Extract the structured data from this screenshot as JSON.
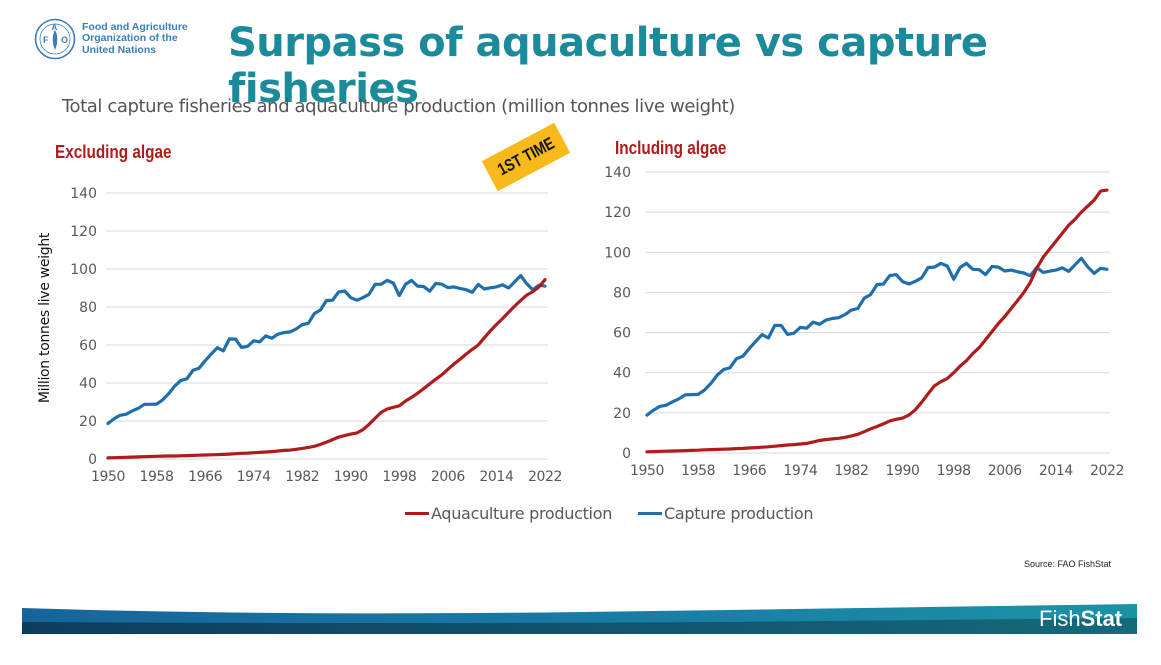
{
  "header": {
    "org_name_lines": [
      "Food and Agriculture",
      "Organization of the",
      "United Nations"
    ],
    "logo_letters": [
      "F",
      "A",
      "O"
    ],
    "title": "Surpass of aquaculture vs capture fisheries",
    "subtitle": "Total capture fisheries and aquaculture production (million tonnes live weight)"
  },
  "stamp": {
    "text": "1ST TIME",
    "color": "#f7b91b"
  },
  "colors": {
    "title": "#1b8a9a",
    "aquaculture": "#b01c1c",
    "capture": "#1f6fad",
    "panel_label": "#b01c1c",
    "grid": "#d9d9d9",
    "tick_text": "#595959"
  },
  "legend": {
    "items": [
      {
        "label": "Aquaculture production",
        "color": "#b01c1c"
      },
      {
        "label": "Capture production",
        "color": "#1f6fad"
      }
    ]
  },
  "footer": {
    "source": "Source: FAO FishStat",
    "brand_light": "Fish",
    "brand_bold": "Stat"
  },
  "chart_data": [
    {
      "type": "line",
      "title": "Excluding algae",
      "xlabel": "",
      "ylabel": "Million tonnes live weight",
      "xlim": [
        1950,
        2022
      ],
      "ylim": [
        0,
        140
      ],
      "x_ticks": [
        "1950",
        "1958",
        "1966",
        "1974",
        "1982",
        "1990",
        "1998",
        "2006",
        "2014",
        "2022"
      ],
      "y_ticks": [
        "0",
        "20",
        "40",
        "60",
        "80",
        "100",
        "120",
        "140"
      ],
      "grid": true,
      "legend": "bottom",
      "x": [
        1950,
        1951,
        1952,
        1953,
        1954,
        1955,
        1956,
        1957,
        1958,
        1959,
        1960,
        1961,
        1962,
        1963,
        1964,
        1965,
        1966,
        1967,
        1968,
        1969,
        1970,
        1971,
        1972,
        1973,
        1974,
        1975,
        1976,
        1977,
        1978,
        1979,
        1980,
        1981,
        1982,
        1983,
        1984,
        1985,
        1986,
        1987,
        1988,
        1989,
        1990,
        1991,
        1992,
        1993,
        1994,
        1995,
        1996,
        1997,
        1998,
        1999,
        2000,
        2001,
        2002,
        2003,
        2004,
        2005,
        2006,
        2007,
        2008,
        2009,
        2010,
        2011,
        2012,
        2013,
        2014,
        2015,
        2016,
        2017,
        2018,
        2019,
        2020,
        2021,
        2022
      ],
      "series": [
        {
          "name": "Aquaculture production",
          "values": [
            0.6,
            0.7,
            0.8,
            0.9,
            1.0,
            1.1,
            1.2,
            1.3,
            1.4,
            1.5,
            1.6,
            1.6,
            1.7,
            1.8,
            1.9,
            2.0,
            2.1,
            2.2,
            2.3,
            2.4,
            2.6,
            2.8,
            3.0,
            3.1,
            3.3,
            3.5,
            3.7,
            3.9,
            4.2,
            4.5,
            4.7,
            5.1,
            5.6,
            6.1,
            6.7,
            7.7,
            8.9,
            10.2,
            11.5,
            12.3,
            13.1,
            13.7,
            15.4,
            18.2,
            21.4,
            24.5,
            26.3,
            27.2,
            28.0,
            30.5,
            32.4,
            34.6,
            37.0,
            39.5,
            42.0,
            44.3,
            47.2,
            50.0,
            52.5,
            55.2,
            57.7,
            60.0,
            63.8,
            67.5,
            70.8,
            73.9,
            77.2,
            80.5,
            83.5,
            86.3,
            88.1,
            90.5,
            94.4
          ]
        },
        {
          "name": "Capture production",
          "values": [
            18.7,
            21.2,
            23.0,
            23.6,
            25.3,
            26.7,
            28.8,
            28.8,
            28.9,
            31.1,
            34.4,
            38.5,
            41.3,
            42.2,
            46.7,
            47.8,
            51.7,
            55.2,
            58.6,
            56.9,
            63.2,
            63.1,
            58.7,
            59.3,
            62.2,
            61.7,
            64.8,
            63.6,
            65.7,
            66.5,
            66.9,
            68.5,
            70.7,
            71.4,
            76.6,
            78.4,
            83.4,
            83.6,
            87.9,
            88.4,
            84.9,
            83.6,
            84.9,
            86.7,
            91.9,
            92.0,
            94.0,
            92.6,
            86.0,
            91.9,
            94.0,
            91.0,
            90.8,
            88.3,
            92.4,
            92.0,
            90.2,
            90.6,
            89.8,
            89.1,
            87.7,
            91.9,
            89.5,
            90.1,
            90.6,
            91.7,
            90.0,
            93.3,
            96.5,
            92.2,
            89.0,
            91.5,
            91.0
          ]
        }
      ]
    },
    {
      "type": "line",
      "title": "Including algae",
      "xlabel": "",
      "ylabel": "",
      "xlim": [
        1950,
        2022
      ],
      "ylim": [
        0,
        140
      ],
      "x_ticks": [
        "1950",
        "1958",
        "1966",
        "1974",
        "1982",
        "1990",
        "1998",
        "2006",
        "2014",
        "2022"
      ],
      "y_ticks": [
        "0",
        "20",
        "40",
        "60",
        "80",
        "100",
        "120",
        "140"
      ],
      "grid": true,
      "legend": "bottom",
      "x": [
        1950,
        1951,
        1952,
        1953,
        1954,
        1955,
        1956,
        1957,
        1958,
        1959,
        1960,
        1961,
        1962,
        1963,
        1964,
        1965,
        1966,
        1967,
        1968,
        1969,
        1970,
        1971,
        1972,
        1973,
        1974,
        1975,
        1976,
        1977,
        1978,
        1979,
        1980,
        1981,
        1982,
        1983,
        1984,
        1985,
        1986,
        1987,
        1988,
        1989,
        1990,
        1991,
        1992,
        1993,
        1994,
        1995,
        1996,
        1997,
        1998,
        1999,
        2000,
        2001,
        2002,
        2003,
        2004,
        2005,
        2006,
        2007,
        2008,
        2009,
        2010,
        2011,
        2012,
        2013,
        2014,
        2015,
        2016,
        2017,
        2018,
        2019,
        2020,
        2021,
        2022
      ],
      "series": [
        {
          "name": "Aquaculture production",
          "values": [
            0.6,
            0.7,
            0.8,
            0.9,
            1.0,
            1.1,
            1.2,
            1.3,
            1.4,
            1.6,
            1.7,
            1.8,
            1.9,
            2.0,
            2.2,
            2.3,
            2.5,
            2.7,
            2.9,
            3.1,
            3.4,
            3.7,
            4.0,
            4.2,
            4.5,
            4.8,
            5.5,
            6.3,
            6.7,
            7.0,
            7.3,
            7.8,
            8.5,
            9.3,
            10.6,
            12.0,
            13.2,
            14.5,
            16.0,
            16.8,
            17.4,
            18.9,
            21.5,
            25.3,
            29.5,
            33.5,
            35.5,
            37.1,
            40.0,
            43.3,
            46.0,
            49.5,
            52.5,
            56.5,
            60.5,
            64.5,
            68.0,
            72.0,
            76.0,
            80.0,
            85.0,
            92.0,
            97.5,
            101.5,
            105.5,
            109.5,
            113.5,
            116.5,
            120.0,
            123.0,
            126.0,
            130.5,
            131.0
          ]
        },
        {
          "name": "Capture production",
          "values": [
            18.9,
            21.3,
            23.2,
            23.8,
            25.5,
            27.0,
            29.0,
            29.1,
            29.2,
            31.4,
            34.7,
            38.8,
            41.6,
            42.5,
            47.0,
            48.2,
            52.0,
            55.5,
            59.0,
            57.3,
            63.6,
            63.5,
            59.1,
            59.7,
            62.6,
            62.2,
            65.2,
            64.1,
            66.2,
            67.0,
            67.4,
            69.0,
            71.2,
            72.0,
            77.1,
            78.9,
            83.9,
            84.2,
            88.4,
            88.9,
            85.4,
            84.2,
            85.5,
            87.3,
            92.4,
            92.6,
            94.5,
            93.1,
            86.6,
            92.4,
            94.5,
            91.5,
            91.3,
            88.9,
            92.9,
            92.6,
            90.7,
            91.1,
            90.3,
            89.7,
            88.3,
            92.4,
            90.0,
            90.6,
            91.1,
            92.2,
            90.5,
            93.8,
            97.0,
            92.7,
            89.5,
            92.0,
            91.5
          ]
        }
      ]
    }
  ]
}
